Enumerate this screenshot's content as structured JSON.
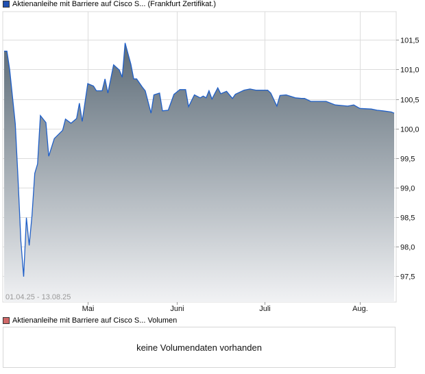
{
  "price_legend": {
    "label": "Aktienanleihe mit Barriere auf Cisco S... (Frankfurt Zertifikat.)",
    "color": "#1f4fb0"
  },
  "volume_legend": {
    "label": "Aktienanleihe mit Barriere auf Cisco S... Volumen",
    "color": "#d06868"
  },
  "volume_message": "keine Volumendaten vorhanden",
  "chart_data": {
    "type": "area",
    "date_range_label": "01.04.25 - 13.08.25",
    "x_tick_labels": [
      {
        "date": "2025-05-01",
        "label": "Mai"
      },
      {
        "date": "2025-06-01",
        "label": "Juni"
      },
      {
        "date": "2025-07-01",
        "label": "Juli"
      },
      {
        "date": "2025-08-01",
        "label": "Aug."
      }
    ],
    "y_ticks": [
      101.5,
      101.0,
      100.5,
      100.0,
      99.5,
      99.0,
      98.5,
      98.0,
      97.5
    ],
    "y_tick_labels": [
      "101,5",
      "101,0",
      "100,5",
      "100,0",
      "99,5",
      "99,0",
      "98,5",
      "98,0",
      "97,5"
    ],
    "ylim": [
      97.06,
      101.98
    ],
    "xlim": [
      "2025-04-01",
      "2025-08-13"
    ],
    "grid": true,
    "line_color": "#1f5fc8",
    "fill_top_color": "#5c6b77",
    "fill_bottom_color": "#f1f2f4",
    "series": [
      {
        "points": [
          [
            "2025-04-01",
            101.31
          ],
          [
            "2025-04-02",
            101.31
          ],
          [
            "2025-04-03",
            101.0
          ],
          [
            "2025-04-05",
            100.08
          ],
          [
            "2025-04-06",
            99.15
          ],
          [
            "2025-04-07",
            98.1
          ],
          [
            "2025-04-08",
            97.49
          ],
          [
            "2025-04-09",
            98.49
          ],
          [
            "2025-04-10",
            98.02
          ],
          [
            "2025-04-11",
            98.53
          ],
          [
            "2025-04-12",
            99.24
          ],
          [
            "2025-04-13",
            99.4
          ],
          [
            "2025-04-14",
            100.22
          ],
          [
            "2025-04-16",
            100.1
          ],
          [
            "2025-04-17",
            99.53
          ],
          [
            "2025-04-19",
            99.83
          ],
          [
            "2025-04-22",
            99.97
          ],
          [
            "2025-04-23",
            100.16
          ],
          [
            "2025-04-25",
            100.09
          ],
          [
            "2025-04-27",
            100.17
          ],
          [
            "2025-04-28",
            100.43
          ],
          [
            "2025-04-29",
            100.12
          ],
          [
            "2025-05-01",
            100.76
          ],
          [
            "2025-05-03",
            100.72
          ],
          [
            "2025-05-04",
            100.64
          ],
          [
            "2025-05-06",
            100.64
          ],
          [
            "2025-05-07",
            100.84
          ],
          [
            "2025-05-08",
            100.6
          ],
          [
            "2025-05-10",
            101.08
          ],
          [
            "2025-05-12",
            100.99
          ],
          [
            "2025-05-13",
            100.87
          ],
          [
            "2025-05-14",
            101.45
          ],
          [
            "2025-05-16",
            101.09
          ],
          [
            "2025-05-17",
            100.84
          ],
          [
            "2025-05-18",
            100.84
          ],
          [
            "2025-05-20",
            100.7
          ],
          [
            "2025-05-21",
            100.64
          ],
          [
            "2025-05-23",
            100.26
          ],
          [
            "2025-05-24",
            100.57
          ],
          [
            "2025-05-26",
            100.6
          ],
          [
            "2025-05-27",
            100.3
          ],
          [
            "2025-05-29",
            100.31
          ],
          [
            "2025-05-31",
            100.58
          ],
          [
            "2025-06-02",
            100.66
          ],
          [
            "2025-06-04",
            100.66
          ],
          [
            "2025-06-05",
            100.37
          ],
          [
            "2025-06-07",
            100.57
          ],
          [
            "2025-06-09",
            100.52
          ],
          [
            "2025-06-10",
            100.55
          ],
          [
            "2025-06-11",
            100.52
          ],
          [
            "2025-06-12",
            100.64
          ],
          [
            "2025-06-13",
            100.5
          ],
          [
            "2025-06-15",
            100.69
          ],
          [
            "2025-06-16",
            100.59
          ],
          [
            "2025-06-18",
            100.63
          ],
          [
            "2025-06-20",
            100.51
          ],
          [
            "2025-06-21",
            100.58
          ],
          [
            "2025-06-24",
            100.65
          ],
          [
            "2025-06-26",
            100.67
          ],
          [
            "2025-06-28",
            100.65
          ],
          [
            "2025-07-02",
            100.65
          ],
          [
            "2025-07-03",
            100.6
          ],
          [
            "2025-07-05",
            100.38
          ],
          [
            "2025-07-06",
            100.56
          ],
          [
            "2025-07-08",
            100.57
          ],
          [
            "2025-07-11",
            100.52
          ],
          [
            "2025-07-13",
            100.51
          ],
          [
            "2025-07-14",
            100.51
          ],
          [
            "2025-07-16",
            100.46
          ],
          [
            "2025-07-21",
            100.46
          ],
          [
            "2025-07-24",
            100.4
          ],
          [
            "2025-07-28",
            100.38
          ],
          [
            "2025-07-30",
            100.4
          ],
          [
            "2025-08-01",
            100.34
          ],
          [
            "2025-08-05",
            100.33
          ],
          [
            "2025-08-07",
            100.31
          ],
          [
            "2025-08-09",
            100.3
          ],
          [
            "2025-08-12",
            100.28
          ],
          [
            "2025-08-13",
            100.26
          ]
        ]
      }
    ]
  }
}
